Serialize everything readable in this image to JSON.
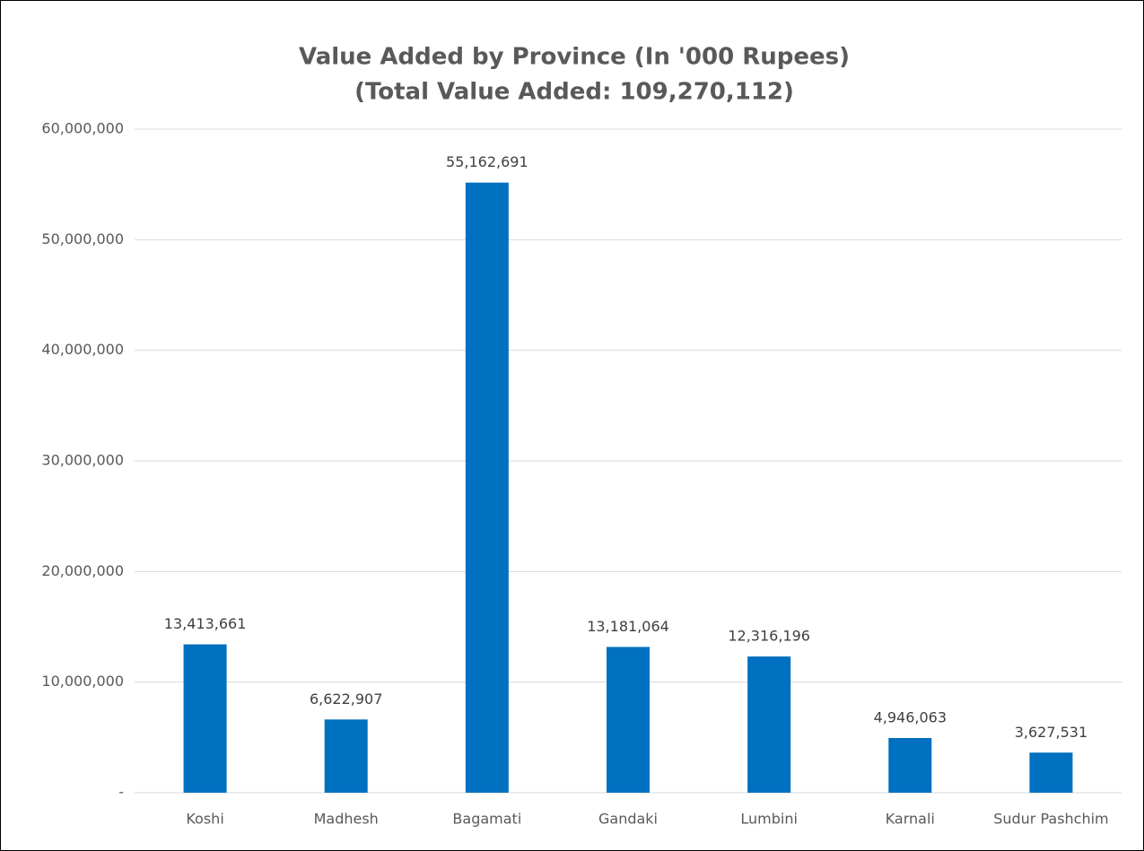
{
  "chart_data": {
    "type": "bar",
    "title": "Value Added by Province (In '000 Rupees)",
    "subtitle": "(Total Value Added: 109,270,112)",
    "categories": [
      "Koshi",
      "Madhesh",
      "Bagamati",
      "Gandaki",
      "Lumbini",
      "Karnali",
      "Sudur Pashchim"
    ],
    "values": [
      13413661,
      6622907,
      55162691,
      13181064,
      12316196,
      4946063,
      3627531
    ],
    "value_labels": [
      "13,413,661",
      "6,622,907",
      "55,162,691",
      "13,181,064",
      "12,316,196",
      "4,946,063",
      "3,627,531"
    ],
    "color": "#0070c0",
    "ylim": [
      0,
      60000000
    ],
    "yticks": [
      {
        "value": 0,
        "label": "-"
      },
      {
        "value": 10000000,
        "label": "10,000,000"
      },
      {
        "value": 20000000,
        "label": "20,000,000"
      },
      {
        "value": 30000000,
        "label": "30,000,000"
      },
      {
        "value": 40000000,
        "label": "40,000,000"
      },
      {
        "value": 50000000,
        "label": "50,000,000"
      },
      {
        "value": 60000000,
        "label": "60,000,000"
      }
    ],
    "grid": true
  }
}
